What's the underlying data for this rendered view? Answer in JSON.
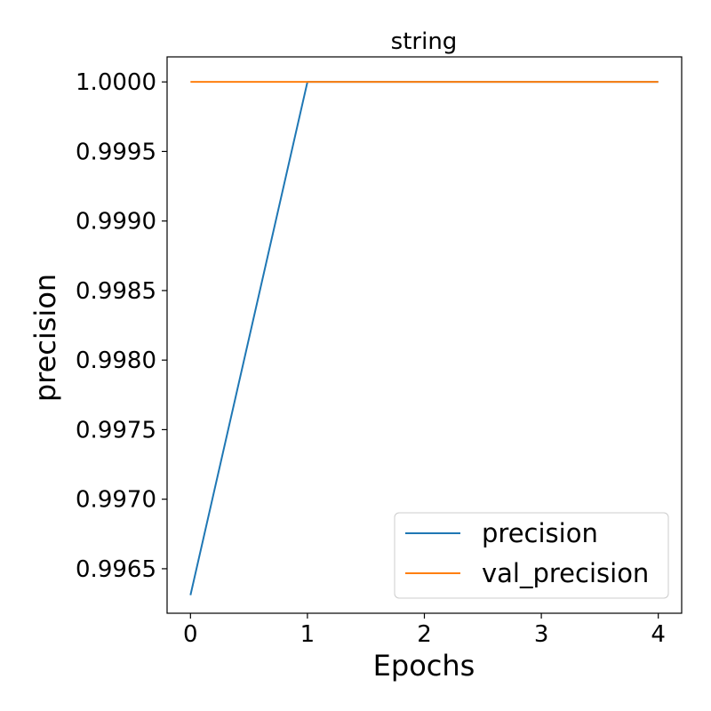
{
  "chart_data": {
    "type": "line",
    "title": "string",
    "xlabel": "Epochs",
    "ylabel": "precision",
    "x": [
      0,
      1,
      2,
      3,
      4
    ],
    "xticks": [
      "0",
      "1",
      "2",
      "3",
      "4"
    ],
    "yticks": [
      "0.9965",
      "0.9970",
      "0.9975",
      "0.9980",
      "0.9985",
      "0.9990",
      "0.9995",
      "1.0000"
    ],
    "xlim": [
      -0.2,
      4.2
    ],
    "ylim": [
      0.99618,
      1.00018
    ],
    "grid": false,
    "legend_position": "bottom-right",
    "series": [
      {
        "name": "precision",
        "color": "#1f77b4",
        "values": [
          0.99631,
          1.0,
          1.0,
          1.0,
          1.0
        ]
      },
      {
        "name": "val_precision",
        "color": "#ff7f0e",
        "values": [
          1.0,
          1.0,
          1.0,
          1.0,
          1.0
        ]
      }
    ]
  }
}
